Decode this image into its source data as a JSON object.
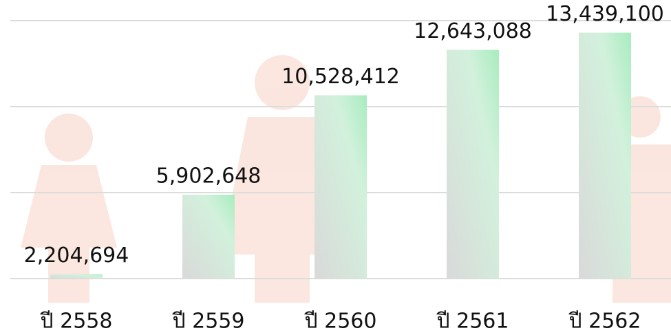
{
  "chart_data": {
    "type": "bar",
    "categories": [
      "ปี 2558",
      "ปี 2559",
      "ปี 2560",
      "ปี 2561",
      "ปี 2562"
    ],
    "values": [
      2204694,
      5902648,
      10528412,
      12643088,
      13439100
    ],
    "value_labels": [
      "2,204,694",
      "5,902,648",
      "10,528,412",
      "12,643,088",
      "13,439,100"
    ],
    "ylim": [
      2000000,
      14000000
    ],
    "yticks": [
      2000000,
      6000000,
      10000000,
      14000000
    ],
    "grid": true
  }
}
